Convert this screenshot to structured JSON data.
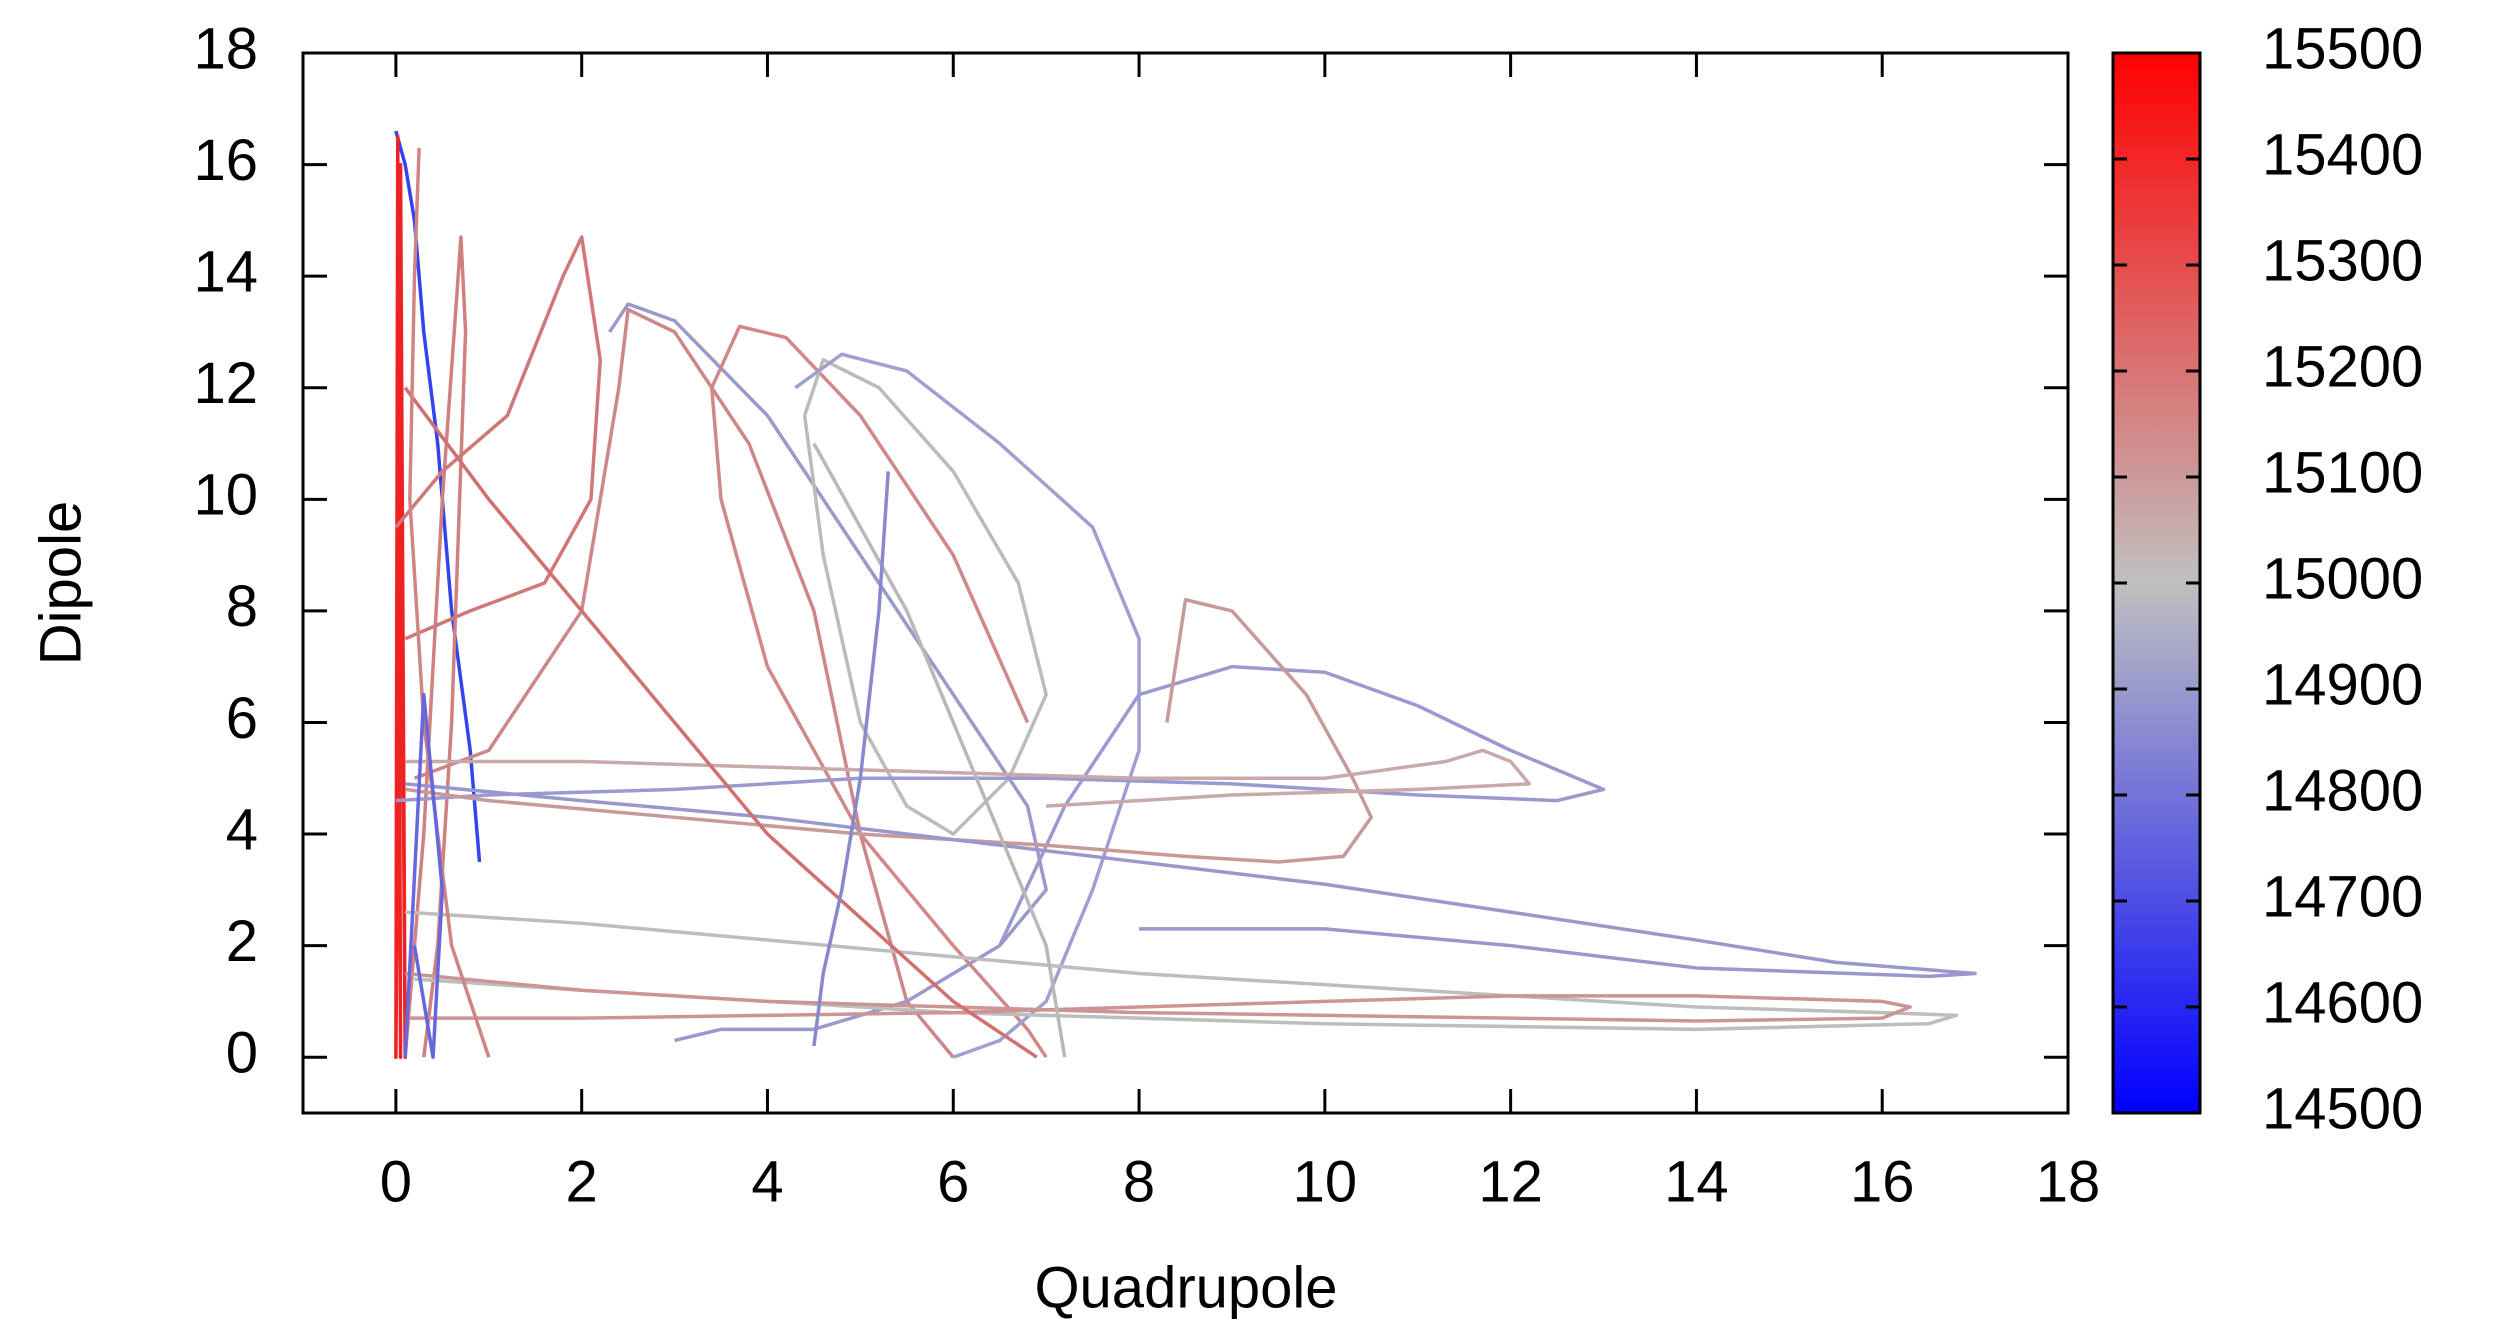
{
  "chart_data": {
    "type": "line",
    "xlabel": "Quadrupole",
    "ylabel": "Dipole",
    "xlim": [
      -1,
      18
    ],
    "ylim": [
      -1,
      18
    ],
    "xticks": [
      0,
      2,
      4,
      6,
      8,
      10,
      12,
      14,
      16,
      18
    ],
    "yticks": [
      0,
      2,
      4,
      6,
      8,
      10,
      12,
      14,
      16,
      18
    ],
    "cblim": [
      14500,
      15500
    ],
    "cbticks": [
      14500,
      14600,
      14700,
      14800,
      14900,
      15000,
      15100,
      15200,
      15300,
      15400,
      15500
    ],
    "colorbar_colors": [
      "#0000ff",
      "#c0c0c0",
      "#ff0000"
    ],
    "series": [
      {
        "color": "#3344ee",
        "x": [
          0,
          0.1,
          0.2,
          0.3,
          0.45,
          0.6,
          0.8,
          0.9
        ],
        "values": [
          16.6,
          16,
          15,
          13,
          11,
          8,
          5.5,
          3.5
        ]
      },
      {
        "color": "#ee2222",
        "x": [
          0,
          0.02,
          0.05,
          0.02,
          0,
          0.05,
          0.1,
          0.05,
          0
        ],
        "values": [
          0,
          16.5,
          0,
          15.5,
          0,
          16,
          0,
          12,
          0
        ]
      },
      {
        "color": "#d08080",
        "x": [
          0.1,
          0.3,
          0.5,
          0.7,
          0.75,
          0.6,
          0.45,
          0.3
        ],
        "values": [
          0,
          4,
          10,
          14.7,
          13,
          6,
          2,
          0
        ]
      },
      {
        "color": "#d07878",
        "x": [
          0,
          0.5,
          1.2,
          1.8,
          2,
          2.2,
          2.1,
          1.6,
          0.8,
          0.1
        ],
        "values": [
          9.5,
          10.5,
          11.5,
          14,
          14.7,
          12.5,
          10,
          8.5,
          8,
          7.5
        ]
      },
      {
        "color": "#cc8888",
        "x": [
          0.2,
          1,
          2,
          2.4,
          2.5,
          3,
          3.8,
          4.5,
          5,
          5.5,
          6
        ],
        "values": [
          5,
          5.5,
          8,
          12,
          13.4,
          13,
          11,
          8,
          4,
          1,
          0
        ]
      },
      {
        "color": "#9999cc",
        "x": [
          2.3,
          2.5,
          3,
          4,
          5,
          6,
          6.8,
          7,
          6.5,
          5.5,
          4.5,
          3.5,
          3
        ],
        "values": [
          13,
          13.5,
          13.2,
          11.5,
          9,
          6.5,
          4.5,
          3,
          2,
          1,
          0.5,
          0.5,
          0.3
        ]
      },
      {
        "color": "#d08888",
        "x": [
          6.8,
          6,
          5,
          4.2,
          3.7,
          3.4,
          3.5,
          4,
          5,
          6,
          6.8,
          7
        ],
        "values": [
          6,
          9,
          11.5,
          12.9,
          13.1,
          12,
          10,
          7,
          4,
          2,
          0.5,
          0
        ]
      },
      {
        "color": "#bbbbbb",
        "x": [
          4.4,
          4.6,
          5.2,
          6,
          6.7,
          7,
          6.6,
          6,
          5.5,
          5,
          4.6,
          4.4
        ],
        "values": [
          11.5,
          12.5,
          12,
          10.5,
          8.5,
          6.5,
          5,
          4,
          4.5,
          6,
          9,
          11.5
        ]
      },
      {
        "color": "#a0a0d0",
        "x": [
          4.3,
          4.8,
          5.5,
          6.5,
          7.5,
          8,
          8,
          7.5,
          7,
          6.5,
          6
        ],
        "values": [
          12,
          12.6,
          12.3,
          11,
          9.5,
          7.5,
          5.5,
          3,
          1,
          0.3,
          0
        ]
      },
      {
        "color": "#9a9ad0",
        "x": [
          6.5,
          7.2,
          8,
          9,
          10,
          11,
          12,
          13,
          12.5,
          11,
          9,
          7,
          5,
          3,
          1,
          0
        ],
        "values": [
          2,
          4.5,
          6.5,
          7,
          6.9,
          6.3,
          5.5,
          4.8,
          4.6,
          4.7,
          4.9,
          5,
          5,
          4.8,
          4.7,
          4.6
        ]
      },
      {
        "color": "#c89999",
        "x": [
          8.3,
          8.5,
          9,
          9.8,
          10.3,
          10.5,
          10.2,
          9.5,
          8.5,
          7,
          5,
          3,
          1,
          0.1
        ],
        "values": [
          6,
          8.2,
          8,
          6.5,
          5,
          4.3,
          3.6,
          3.5,
          3.6,
          3.8,
          4,
          4.3,
          4.6,
          4.8
        ]
      },
      {
        "color": "#c8aaaa",
        "x": [
          0.1,
          2,
          4,
          6,
          8,
          10,
          11.3,
          11.7,
          12,
          12.2,
          11,
          9,
          7
        ],
        "values": [
          5.3,
          5.3,
          5.2,
          5.1,
          5,
          5,
          5.3,
          5.5,
          5.3,
          4.9,
          4.8,
          4.7,
          4.5
        ]
      },
      {
        "color": "#9898cc",
        "x": [
          0.1,
          2,
          4,
          6,
          8,
          10,
          12,
          14,
          15.5,
          17,
          16.5,
          14,
          12,
          10,
          8
        ],
        "values": [
          4.9,
          4.6,
          4.3,
          3.9,
          3.5,
          3.1,
          2.6,
          2.1,
          1.7,
          1.5,
          1.45,
          1.6,
          2,
          2.3,
          2.3
        ]
      },
      {
        "color": "#bdbdbd",
        "x": [
          0.1,
          2,
          4,
          6,
          8,
          10,
          12,
          14,
          16,
          16.8,
          16.5,
          14,
          12,
          10,
          8,
          6,
          4,
          2,
          0.2
        ],
        "values": [
          2.6,
          2.4,
          2.1,
          1.8,
          1.5,
          1.3,
          1.1,
          0.9,
          0.8,
          0.75,
          0.6,
          0.5,
          0.55,
          0.6,
          0.7,
          0.8,
          1,
          1.2,
          1.4
        ]
      },
      {
        "color": "#cc9494",
        "x": [
          0.1,
          2,
          4,
          6,
          8,
          10,
          12,
          14,
          16,
          16.3,
          16,
          14,
          12,
          10,
          8,
          6,
          4,
          2,
          0.1
        ],
        "values": [
          0.7,
          0.7,
          0.75,
          0.8,
          0.9,
          1,
          1.1,
          1.1,
          1,
          0.9,
          0.7,
          0.65,
          0.7,
          0.75,
          0.8,
          0.9,
          1,
          1.2,
          1.5
        ]
      },
      {
        "color": "#d07070",
        "x": [
          0.1,
          1,
          2,
          3,
          4,
          5,
          6,
          6.9
        ],
        "values": [
          12,
          10,
          8,
          6,
          4,
          2.5,
          1,
          0
        ]
      },
      {
        "color": "#d08484",
        "x": [
          0.25,
          0.2,
          0.15,
          0.3,
          0.6,
          1
        ],
        "values": [
          16.3,
          14,
          10,
          6,
          2,
          0
        ]
      },
      {
        "color": "#b8b8b8",
        "x": [
          4.5,
          5,
          5.5,
          6,
          6.5,
          7,
          7.2
        ],
        "values": [
          11,
          9.5,
          8,
          6,
          4,
          2,
          0
        ]
      },
      {
        "color": "#8888cc",
        "x": [
          5.3,
          5.2,
          5,
          4.8,
          4.6,
          4.5
        ],
        "values": [
          10.5,
          8,
          5,
          3,
          1.5,
          0.2
        ]
      },
      {
        "color": "#6666dd",
        "x": [
          0.1,
          0.3,
          0.5,
          0.4,
          0.2
        ],
        "values": [
          0,
          6.5,
          3,
          0,
          2
        ]
      }
    ]
  }
}
